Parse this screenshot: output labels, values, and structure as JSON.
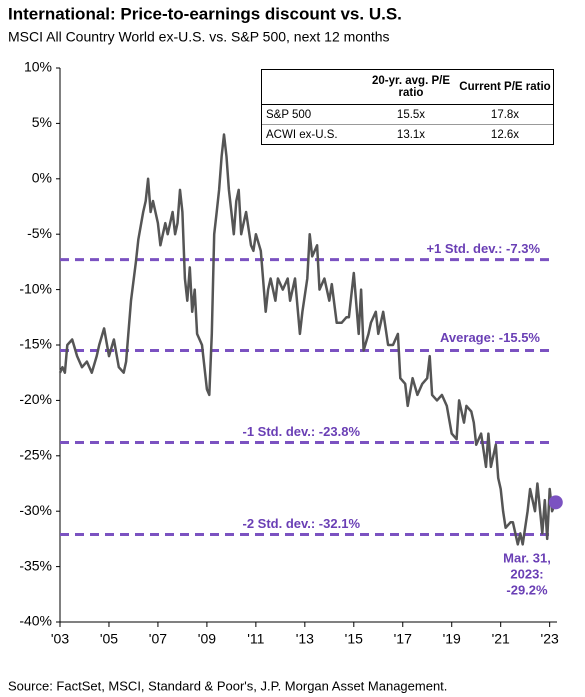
{
  "chart_data": {
    "type": "line",
    "title": "International: Price-to-earnings discount vs. U.S.",
    "subtitle": "MSCI All Country World ex-U.S. vs. S&P 500, next 12 months",
    "source": "Source: FactSet, MSCI, Standard & Poor's, J.P. Morgan Asset Management.",
    "xlim": [
      2003,
      2023.3
    ],
    "xticks": [
      {
        "value": 2003,
        "label": "'03"
      },
      {
        "value": 2005,
        "label": "'05"
      },
      {
        "value": 2007,
        "label": "'07"
      },
      {
        "value": 2009,
        "label": "'09"
      },
      {
        "value": 2011,
        "label": "'11"
      },
      {
        "value": 2013,
        "label": "'13"
      },
      {
        "value": 2015,
        "label": "'15"
      },
      {
        "value": 2017,
        "label": "'17"
      },
      {
        "value": 2019,
        "label": "'19"
      },
      {
        "value": 2021,
        "label": "'21"
      },
      {
        "value": 2023,
        "label": "'23"
      }
    ],
    "ylim": [
      -40,
      10
    ],
    "yticks": [
      {
        "value": 10,
        "label": "10%"
      },
      {
        "value": 5,
        "label": "5%"
      },
      {
        "value": 0,
        "label": "0%"
      },
      {
        "value": -5,
        "label": "-5%"
      },
      {
        "value": -10,
        "label": "-10%"
      },
      {
        "value": -15,
        "label": "-15%"
      },
      {
        "value": -20,
        "label": "-20%"
      },
      {
        "value": -25,
        "label": "-25%"
      },
      {
        "value": -30,
        "label": "-30%"
      },
      {
        "value": -35,
        "label": "-35%"
      },
      {
        "value": -40,
        "label": "-40%"
      }
    ],
    "x": [
      2003.0,
      2003.1,
      2003.2,
      2003.3,
      2003.5,
      2003.7,
      2003.9,
      2004.1,
      2004.3,
      2004.5,
      2004.6,
      2004.8,
      2005.0,
      2005.2,
      2005.4,
      2005.6,
      2005.7,
      2005.9,
      2006.1,
      2006.2,
      2006.4,
      2006.5,
      2006.6,
      2006.7,
      2006.8,
      2007.0,
      2007.1,
      2007.3,
      2007.4,
      2007.6,
      2007.7,
      2007.8,
      2007.9,
      2008.0,
      2008.1,
      2008.2,
      2008.3,
      2008.4,
      2008.5,
      2008.6,
      2008.8,
      2009.0,
      2009.1,
      2009.2,
      2009.3,
      2009.4,
      2009.5,
      2009.6,
      2009.7,
      2009.8,
      2009.9,
      2010.0,
      2010.1,
      2010.2,
      2010.3,
      2010.4,
      2010.5,
      2010.6,
      2010.8,
      2010.9,
      2011.0,
      2011.2,
      2011.4,
      2011.5,
      2011.6,
      2011.8,
      2011.9,
      2012.1,
      2012.3,
      2012.4,
      2012.6,
      2012.8,
      2012.9,
      2013.1,
      2013.2,
      2013.3,
      2013.5,
      2013.6,
      2013.8,
      2014.0,
      2014.1,
      2014.3,
      2014.5,
      2014.7,
      2014.8,
      2015.0,
      2015.2,
      2015.3,
      2015.4,
      2015.6,
      2015.7,
      2015.9,
      2016.0,
      2016.2,
      2016.4,
      2016.6,
      2016.8,
      2016.9,
      2017.1,
      2017.2,
      2017.4,
      2017.6,
      2017.8,
      2018.0,
      2018.1,
      2018.2,
      2018.4,
      2018.6,
      2018.8,
      2019.0,
      2019.2,
      2019.3,
      2019.5,
      2019.6,
      2019.8,
      2019.9,
      2020.0,
      2020.2,
      2020.4,
      2020.5,
      2020.6,
      2020.8,
      2020.9,
      2021.0,
      2021.1,
      2021.2,
      2021.4,
      2021.5,
      2021.7,
      2021.8,
      2021.9,
      2022.1,
      2022.2,
      2022.4,
      2022.5,
      2022.7,
      2022.8,
      2022.9,
      2023.0,
      2023.1,
      2023.25
    ],
    "series": [
      {
        "color": "#555555",
        "values": [
          -17.5,
          -17,
          -17.5,
          -15,
          -14.5,
          -16,
          -17,
          -16.5,
          -17.5,
          -16,
          -15,
          -13.5,
          -16,
          -14.5,
          -17,
          -17.5,
          -16.5,
          -11,
          -7.5,
          -5.5,
          -3,
          -2,
          0,
          -3,
          -2,
          -4,
          -6,
          -4,
          -5,
          -3,
          -5,
          -4,
          -1,
          -3,
          -9,
          -11,
          -8,
          -12,
          -10,
          -14,
          -15,
          -19,
          -19.5,
          -14,
          -5,
          -3,
          -1,
          2,
          4,
          2,
          -1,
          -3,
          -5,
          -2,
          -1,
          -5,
          -4,
          -3,
          -6,
          -6.5,
          -5,
          -6.5,
          -12,
          -10,
          -9,
          -11,
          -9,
          -10,
          -9,
          -11,
          -9,
          -14,
          -12,
          -9,
          -5,
          -7,
          -6,
          -10,
          -9,
          -11,
          -9.5,
          -13,
          -13,
          -12.5,
          -12.5,
          -8.5,
          -14,
          -10,
          -15.5,
          -14,
          -13,
          -12,
          -14,
          -12,
          -15,
          -15,
          -14,
          -18,
          -18.5,
          -20.5,
          -18,
          -19.5,
          -18.5,
          -18,
          -16,
          -19.5,
          -20,
          -19.5,
          -20.5,
          -23,
          -23.5,
          -20,
          -22,
          -20.5,
          -21,
          -22,
          -24,
          -23,
          -26,
          -23,
          -26,
          -24,
          -27,
          -28,
          -30,
          -31.5,
          -31,
          -31,
          -33,
          -32,
          -33,
          -30,
          -28,
          -30,
          -27.5,
          -32,
          -29,
          -32.5,
          -28,
          -30,
          -29.2
        ]
      }
    ],
    "reference_lines": [
      {
        "value": -7.3,
        "label": "+1 Std. dev.: -7.3%"
      },
      {
        "value": -15.5,
        "label": "Average: -15.5%"
      },
      {
        "value": -23.8,
        "label": "-1 Std. dev.: -23.8%"
      },
      {
        "value": -32.1,
        "label": "-2 Std. dev.: -32.1%"
      }
    ],
    "reference_color": "#7b52c1",
    "annotation": [
      "Mar. 31,",
      "2023:",
      "-29.2%"
    ],
    "table": {
      "header": [
        "20-yr. avg. P/E ratio",
        "Current P/E ratio"
      ],
      "rows": [
        {
          "label": "S&P 500",
          "values": [
            "15.5x",
            "17.8x"
          ]
        },
        {
          "label": "ACWI ex-U.S.",
          "values": [
            "13.1x",
            "12.6x"
          ]
        }
      ]
    }
  }
}
